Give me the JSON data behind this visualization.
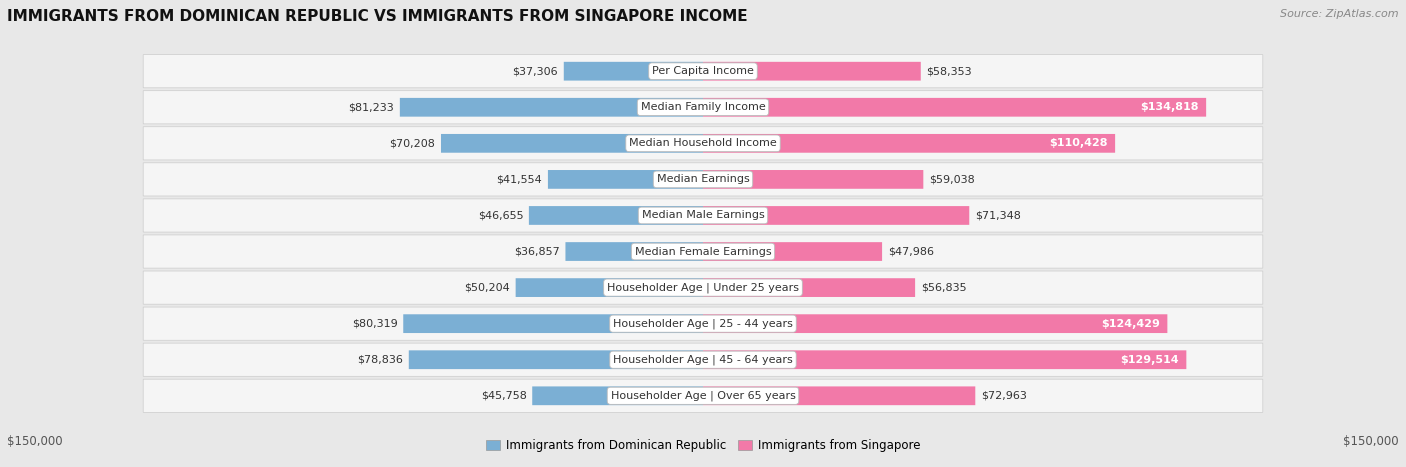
{
  "title": "IMMIGRANTS FROM DOMINICAN REPUBLIC VS IMMIGRANTS FROM SINGAPORE INCOME",
  "source": "Source: ZipAtlas.com",
  "categories": [
    "Per Capita Income",
    "Median Family Income",
    "Median Household Income",
    "Median Earnings",
    "Median Male Earnings",
    "Median Female Earnings",
    "Householder Age | Under 25 years",
    "Householder Age | 25 - 44 years",
    "Householder Age | 45 - 64 years",
    "Householder Age | Over 65 years"
  ],
  "dominican": [
    37306,
    81233,
    70208,
    41554,
    46655,
    36857,
    50204,
    80319,
    78836,
    45758
  ],
  "singapore": [
    58353,
    134818,
    110428,
    59038,
    71348,
    47986,
    56835,
    124429,
    129514,
    72963
  ],
  "dominican_labels": [
    "$37,306",
    "$81,233",
    "$70,208",
    "$41,554",
    "$46,655",
    "$36,857",
    "$50,204",
    "$80,319",
    "$78,836",
    "$45,758"
  ],
  "singapore_labels": [
    "$58,353",
    "$134,818",
    "$110,428",
    "$59,038",
    "$71,348",
    "$47,986",
    "$56,835",
    "$124,429",
    "$129,514",
    "$72,963"
  ],
  "max_val": 150000,
  "color_dominican": "#7BAFD4",
  "color_singapore": "#F279A8",
  "bg_color": "#e8e8e8",
  "row_bg_light": "#f5f5f5",
  "row_bg_dark": "#ebebeb",
  "legend_dominican": "Immigrants from Dominican Republic",
  "legend_singapore": "Immigrants from Singapore",
  "xlabel_left": "$150,000",
  "xlabel_right": "$150,000"
}
